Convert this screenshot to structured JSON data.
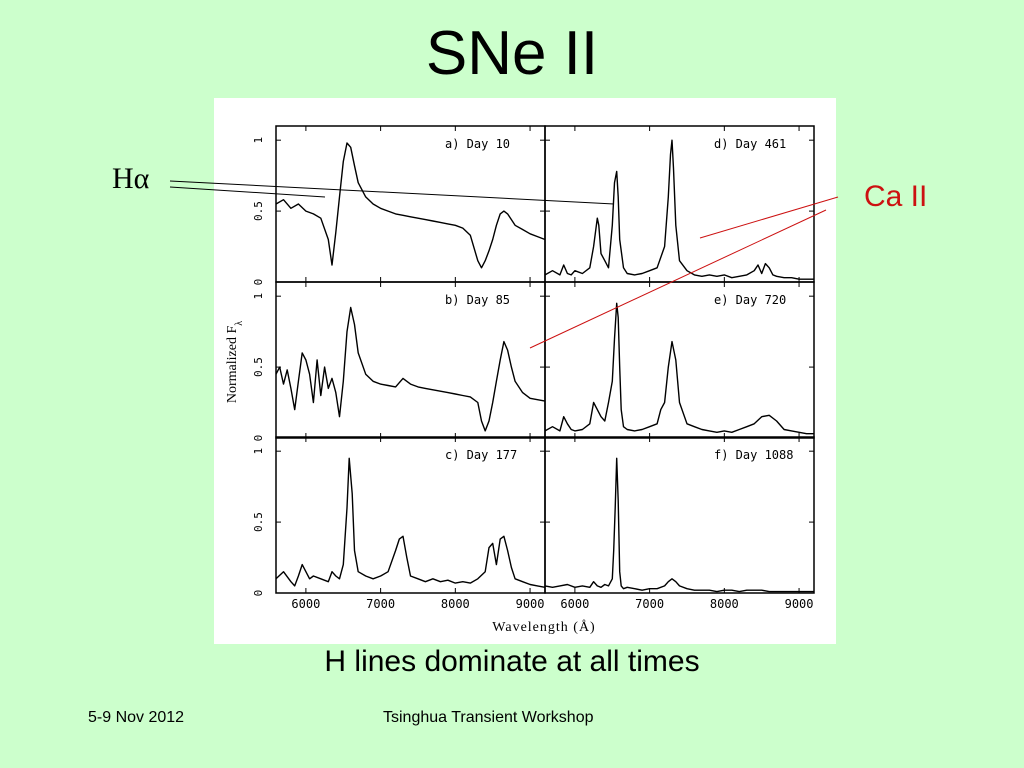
{
  "slide": {
    "title": "SNe II",
    "caption": "H lines dominate at all times",
    "footer_left": "5-9 Nov 2012",
    "footer_center": "Tsinghua Transient Workshop"
  },
  "annotations": {
    "halpha": "Hα",
    "caii": "Ca II",
    "caii_color": "#cc1111"
  },
  "chart_data": {
    "type": "line",
    "xlabel": "Wavelength (Å)",
    "ylabel": "Normalized F",
    "ylabel_subscript": "λ",
    "xlim": [
      5600,
      9200
    ],
    "ylim": [
      0,
      1.1
    ],
    "x_ticks": [
      "6000",
      "7000",
      "8000",
      "9000"
    ],
    "y_ticks": [
      "0",
      "0.5",
      "1"
    ],
    "panels": [
      {
        "label": "a) Day 10",
        "x": [
          5600,
          5700,
          5800,
          5900,
          6000,
          6100,
          6200,
          6300,
          6350,
          6400,
          6450,
          6500,
          6550,
          6600,
          6650,
          6700,
          6800,
          6900,
          7000,
          7100,
          7200,
          7300,
          7400,
          7500,
          7600,
          7700,
          7800,
          7900,
          8000,
          8100,
          8200,
          8300,
          8350,
          8400,
          8450,
          8500,
          8550,
          8600,
          8650,
          8700,
          8750,
          8800,
          8900,
          9000,
          9100,
          9200
        ],
        "y": [
          0.55,
          0.58,
          0.52,
          0.55,
          0.5,
          0.48,
          0.45,
          0.3,
          0.12,
          0.35,
          0.6,
          0.85,
          0.98,
          0.95,
          0.82,
          0.7,
          0.6,
          0.55,
          0.52,
          0.5,
          0.48,
          0.47,
          0.46,
          0.45,
          0.44,
          0.43,
          0.42,
          0.41,
          0.4,
          0.38,
          0.33,
          0.15,
          0.1,
          0.15,
          0.22,
          0.3,
          0.4,
          0.48,
          0.5,
          0.48,
          0.44,
          0.4,
          0.37,
          0.34,
          0.32,
          0.3
        ]
      },
      {
        "label": "b) Day 85",
        "x": [
          5600,
          5650,
          5700,
          5750,
          5800,
          5850,
          5900,
          5950,
          6000,
          6050,
          6100,
          6150,
          6200,
          6250,
          6300,
          6350,
          6400,
          6450,
          6500,
          6550,
          6600,
          6650,
          6700,
          6800,
          6900,
          7000,
          7100,
          7200,
          7300,
          7400,
          7500,
          7600,
          7700,
          7800,
          7900,
          8000,
          8100,
          8200,
          8300,
          8350,
          8400,
          8450,
          8500,
          8550,
          8600,
          8650,
          8700,
          8750,
          8800,
          8900,
          9000,
          9100,
          9200
        ],
        "y": [
          0.45,
          0.5,
          0.38,
          0.48,
          0.35,
          0.2,
          0.4,
          0.6,
          0.55,
          0.45,
          0.25,
          0.55,
          0.3,
          0.5,
          0.35,
          0.42,
          0.32,
          0.15,
          0.4,
          0.75,
          0.92,
          0.8,
          0.6,
          0.45,
          0.4,
          0.38,
          0.37,
          0.36,
          0.42,
          0.38,
          0.36,
          0.35,
          0.34,
          0.33,
          0.32,
          0.31,
          0.3,
          0.29,
          0.25,
          0.12,
          0.05,
          0.12,
          0.25,
          0.4,
          0.55,
          0.68,
          0.62,
          0.5,
          0.4,
          0.32,
          0.28,
          0.27,
          0.26
        ]
      },
      {
        "label": "c) Day 177",
        "x": [
          5600,
          5700,
          5800,
          5850,
          5900,
          5950,
          6000,
          6050,
          6100,
          6200,
          6300,
          6350,
          6400,
          6450,
          6500,
          6550,
          6580,
          6620,
          6650,
          6700,
          6800,
          6900,
          7000,
          7100,
          7200,
          7250,
          7300,
          7350,
          7400,
          7500,
          7600,
          7700,
          7800,
          7900,
          8000,
          8100,
          8200,
          8300,
          8400,
          8450,
          8500,
          8550,
          8600,
          8650,
          8700,
          8750,
          8800,
          8900,
          9000,
          9100,
          9200
        ],
        "y": [
          0.1,
          0.15,
          0.08,
          0.05,
          0.12,
          0.2,
          0.15,
          0.1,
          0.12,
          0.1,
          0.08,
          0.15,
          0.12,
          0.1,
          0.2,
          0.6,
          0.95,
          0.7,
          0.3,
          0.15,
          0.12,
          0.1,
          0.12,
          0.15,
          0.3,
          0.38,
          0.4,
          0.25,
          0.12,
          0.1,
          0.08,
          0.1,
          0.08,
          0.09,
          0.07,
          0.08,
          0.07,
          0.1,
          0.15,
          0.32,
          0.35,
          0.2,
          0.38,
          0.4,
          0.3,
          0.18,
          0.1,
          0.08,
          0.06,
          0.05,
          0.04
        ]
      },
      {
        "label": "d) Day 461",
        "x": [
          5600,
          5700,
          5800,
          5850,
          5900,
          5950,
          6000,
          6100,
          6200,
          6250,
          6300,
          6320,
          6350,
          6400,
          6450,
          6500,
          6530,
          6560,
          6580,
          6600,
          6650,
          6700,
          6800,
          6900,
          7000,
          7100,
          7200,
          7250,
          7280,
          7300,
          7320,
          7350,
          7400,
          7500,
          7600,
          7700,
          7800,
          7900,
          8000,
          8100,
          8200,
          8300,
          8400,
          8450,
          8500,
          8550,
          8600,
          8650,
          8700,
          8800,
          8900,
          9000,
          9100,
          9200
        ],
        "y": [
          0.05,
          0.08,
          0.05,
          0.12,
          0.06,
          0.05,
          0.08,
          0.06,
          0.1,
          0.25,
          0.45,
          0.4,
          0.2,
          0.15,
          0.1,
          0.4,
          0.7,
          0.78,
          0.6,
          0.3,
          0.1,
          0.06,
          0.05,
          0.06,
          0.08,
          0.1,
          0.25,
          0.6,
          0.9,
          1.0,
          0.8,
          0.4,
          0.15,
          0.08,
          0.05,
          0.04,
          0.05,
          0.04,
          0.05,
          0.03,
          0.04,
          0.05,
          0.08,
          0.12,
          0.06,
          0.13,
          0.1,
          0.05,
          0.04,
          0.03,
          0.03,
          0.02,
          0.02,
          0.02
        ]
      },
      {
        "label": "e) Day 720",
        "x": [
          5600,
          5700,
          5800,
          5850,
          5900,
          5950,
          6000,
          6100,
          6200,
          6250,
          6300,
          6350,
          6400,
          6450,
          6500,
          6530,
          6560,
          6580,
          6600,
          6620,
          6650,
          6700,
          6800,
          6900,
          7000,
          7100,
          7150,
          7200,
          7250,
          7300,
          7350,
          7400,
          7500,
          7600,
          7700,
          7800,
          7900,
          8000,
          8100,
          8200,
          8300,
          8400,
          8500,
          8600,
          8700,
          8800,
          8900,
          9000,
          9100,
          9200
        ],
        "y": [
          0.05,
          0.08,
          0.05,
          0.15,
          0.1,
          0.06,
          0.05,
          0.06,
          0.1,
          0.25,
          0.2,
          0.15,
          0.12,
          0.25,
          0.4,
          0.7,
          0.95,
          0.85,
          0.5,
          0.2,
          0.08,
          0.06,
          0.05,
          0.06,
          0.08,
          0.1,
          0.2,
          0.25,
          0.5,
          0.68,
          0.55,
          0.25,
          0.1,
          0.08,
          0.06,
          0.05,
          0.04,
          0.05,
          0.04,
          0.06,
          0.08,
          0.1,
          0.15,
          0.16,
          0.12,
          0.06,
          0.05,
          0.04,
          0.03,
          0.03
        ]
      },
      {
        "label": "f) Day 1088",
        "x": [
          5600,
          5700,
          5800,
          5900,
          6000,
          6100,
          6200,
          6250,
          6300,
          6350,
          6400,
          6450,
          6500,
          6520,
          6540,
          6560,
          6580,
          6600,
          6620,
          6650,
          6700,
          6800,
          6900,
          7000,
          7100,
          7200,
          7250,
          7300,
          7350,
          7400,
          7500,
          7600,
          7700,
          7800,
          7900,
          8000,
          8100,
          8200,
          8300,
          8400,
          8500,
          8600,
          8700,
          8800,
          8900,
          9000,
          9100,
          9200
        ],
        "y": [
          0.05,
          0.04,
          0.05,
          0.06,
          0.04,
          0.05,
          0.04,
          0.08,
          0.05,
          0.04,
          0.06,
          0.05,
          0.1,
          0.3,
          0.6,
          0.95,
          0.65,
          0.15,
          0.05,
          0.03,
          0.04,
          0.03,
          0.02,
          0.03,
          0.03,
          0.05,
          0.08,
          0.1,
          0.08,
          0.05,
          0.03,
          0.02,
          0.02,
          0.02,
          0.01,
          0.02,
          0.02,
          0.01,
          0.02,
          0.02,
          0.02,
          0.01,
          0.01,
          0.01,
          0.01,
          0.01,
          0.01,
          0.01
        ]
      }
    ]
  }
}
